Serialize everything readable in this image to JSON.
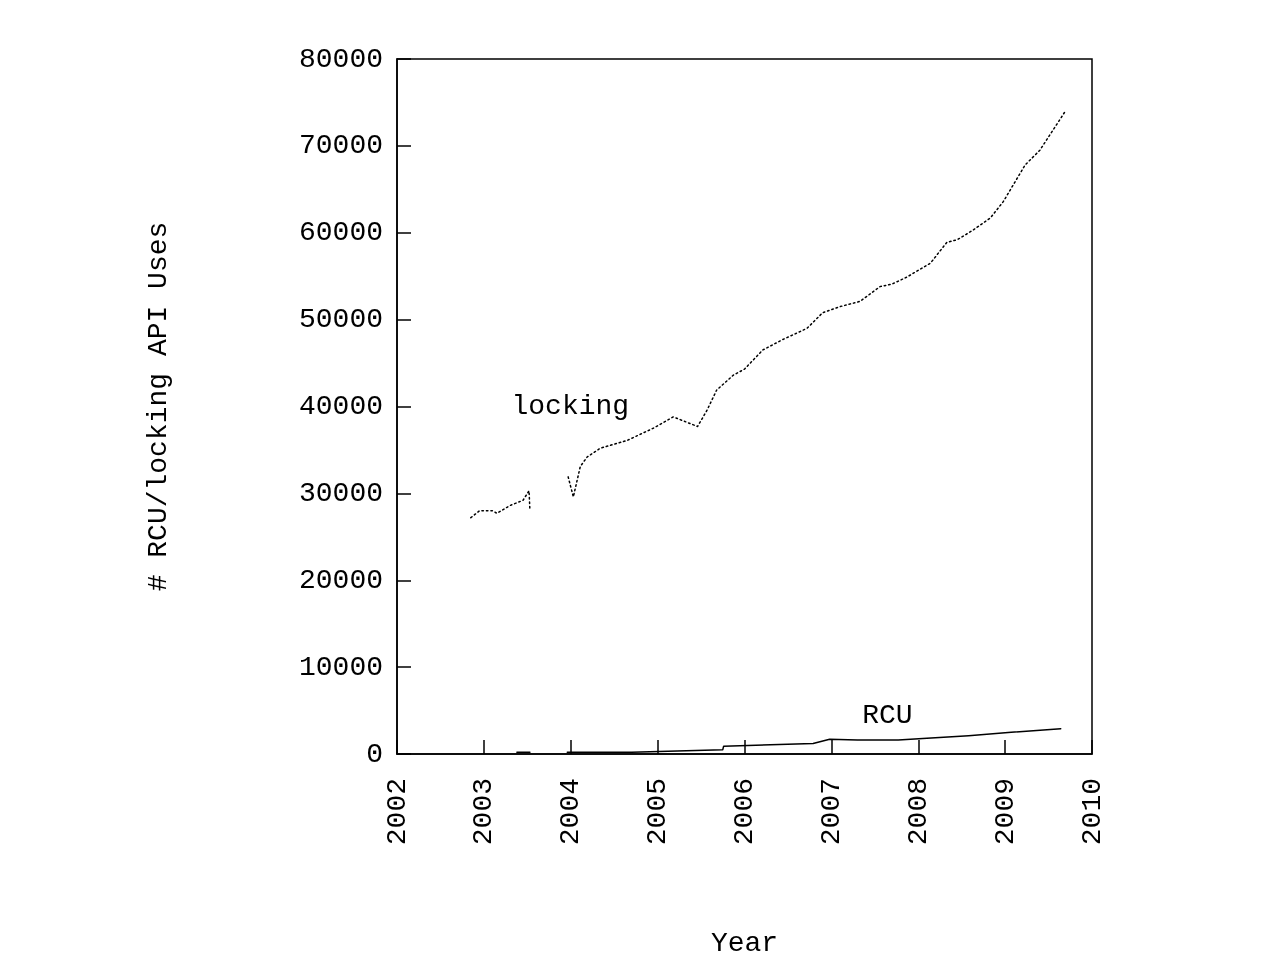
{
  "chart_data": {
    "type": "line",
    "xlabel": "Year",
    "ylabel": "# RCU/locking API Uses",
    "xlim": [
      2002,
      2010
    ],
    "xticks": [
      2002,
      2003,
      2004,
      2005,
      2006,
      2007,
      2008,
      2009,
      2010
    ],
    "ylim": [
      0,
      80000
    ],
    "yticks": [
      0,
      10000,
      20000,
      30000,
      40000,
      50000,
      60000,
      70000,
      80000
    ],
    "grid": false,
    "marker": "none",
    "series": [
      {
        "name": "locking",
        "color": "#000000",
        "line_style": "dotted",
        "x": [
          2002.85,
          2002.95,
          2003.1,
          2003.15,
          2003.3,
          2003.45,
          2003.52,
          2003.53,
          2003.75,
          2003.97,
          2004.03,
          2004.11,
          2004.19,
          2004.34,
          2004.65,
          2004.95,
          2005.18,
          2005.46,
          2005.57,
          2005.68,
          2005.87,
          2006.0,
          2006.21,
          2006.44,
          2006.72,
          2006.9,
          2007.1,
          2007.33,
          2007.56,
          2007.7,
          2007.87,
          2008.14,
          2008.33,
          2008.45,
          2008.63,
          2008.83,
          2008.98,
          2009.23,
          2009.4,
          2009.7
        ],
        "values": [
          27200,
          28000,
          28000,
          27700,
          28600,
          29200,
          30300,
          28000,
          null,
          31900,
          29600,
          33100,
          34200,
          35200,
          36100,
          37500,
          38800,
          37700,
          39600,
          41900,
          43600,
          44300,
          46500,
          47700,
          49000,
          50800,
          51500,
          52100,
          53800,
          54100,
          54900,
          56500,
          58900,
          59200,
          60300,
          61700,
          63600,
          67800,
          69500,
          74100
        ]
      },
      {
        "name": "RCU",
        "color": "#000000",
        "line_style": "solid",
        "x": [
          2003.38,
          2003.53,
          2003.75,
          2003.96,
          2004.7,
          2005.75,
          2005.76,
          2006.79,
          2006.98,
          2007.3,
          2007.77,
          2008.1,
          2008.58,
          2009.07,
          2009.64
        ],
        "values": [
          200,
          200,
          null,
          200,
          200,
          500,
          900,
          1200,
          1700,
          1600,
          1600,
          1800,
          2100,
          2500,
          2900
        ]
      }
    ]
  }
}
